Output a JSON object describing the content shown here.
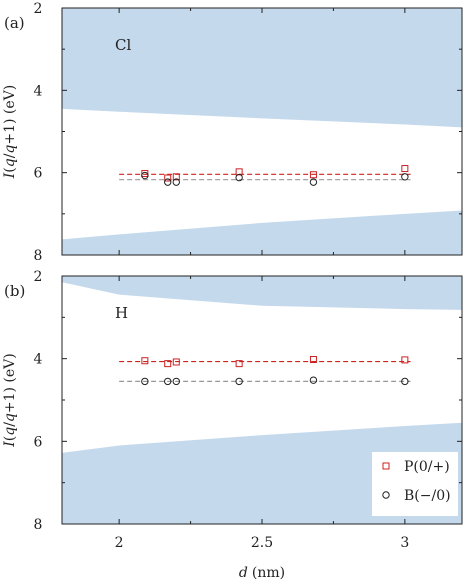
{
  "chart_data": [
    {
      "type": "scatter",
      "panel_label": "(a)",
      "element": "Cl",
      "xlabel": "d (nm)",
      "ylabel": "I(q/q+1) (eV)",
      "xlim": [
        1.8,
        3.2
      ],
      "ylim": [
        2,
        8
      ],
      "y_inverted": true,
      "xticks": [
        "2",
        "2.5",
        "3"
      ],
      "yticks": [
        "2",
        "4",
        "6",
        "8"
      ],
      "band_color": "#c5d9ed",
      "upper_band_edge": {
        "x": [
          1.8,
          2.0,
          2.5,
          3.0,
          3.2
        ],
        "y": [
          4.45,
          4.52,
          4.68,
          4.83,
          4.9
        ]
      },
      "lower_band_edge": {
        "x": [
          1.8,
          2.0,
          2.5,
          3.0,
          3.2
        ],
        "y": [
          7.62,
          7.5,
          7.22,
          7.0,
          6.92
        ]
      },
      "series": [
        {
          "name": "P(0/+)",
          "marker": "square",
          "color": "#cc2222",
          "x": [
            2.09,
            2.17,
            2.2,
            2.42,
            2.68,
            3.0
          ],
          "y": [
            6.02,
            6.13,
            6.1,
            5.98,
            6.05,
            5.9
          ],
          "mean": 6.04
        },
        {
          "name": "B(−/0)",
          "marker": "circle",
          "color": "#222222",
          "x": [
            2.09,
            2.17,
            2.2,
            2.42,
            2.68,
            3.0
          ],
          "y": [
            6.07,
            6.23,
            6.23,
            6.12,
            6.23,
            6.1
          ],
          "mean": 6.17
        }
      ]
    },
    {
      "type": "scatter",
      "panel_label": "(b)",
      "element": "H",
      "xlabel": "d (nm)",
      "ylabel": "I(q/q+1) (eV)",
      "xlim": [
        1.8,
        3.2
      ],
      "ylim": [
        2,
        8
      ],
      "y_inverted": true,
      "xticks": [
        "2",
        "2.5",
        "3"
      ],
      "yticks": [
        "2",
        "4",
        "6",
        "8"
      ],
      "band_color": "#c5d9ed",
      "upper_band_edge": {
        "x": [
          1.8,
          2.0,
          2.5,
          3.0,
          3.2
        ],
        "y": [
          2.15,
          2.45,
          2.72,
          2.8,
          2.82
        ]
      },
      "lower_band_edge": {
        "x": [
          1.8,
          2.0,
          2.5,
          3.0,
          3.2
        ],
        "y": [
          6.28,
          6.1,
          5.85,
          5.63,
          5.55
        ]
      },
      "series": [
        {
          "name": "P(0/+)",
          "marker": "square",
          "color": "#cc2222",
          "x": [
            2.09,
            2.17,
            2.2,
            2.42,
            2.68,
            3.0
          ],
          "y": [
            4.05,
            4.12,
            4.08,
            4.12,
            4.02,
            4.03
          ],
          "mean": 4.07
        },
        {
          "name": "B(−/0)",
          "marker": "circle",
          "color": "#222222",
          "x": [
            2.09,
            2.17,
            2.2,
            2.42,
            2.68,
            3.0
          ],
          "y": [
            4.55,
            4.55,
            4.55,
            4.55,
            4.52,
            4.55
          ],
          "mean": 4.55
        }
      ],
      "legend": {
        "placement": "bottom-right",
        "entries": [
          {
            "label": "P(0/+)",
            "marker": "square",
            "color": "#cc2222"
          },
          {
            "label": "B(−/0)",
            "marker": "circle",
            "color": "#222222"
          }
        ]
      }
    }
  ],
  "shared_xlabel_prefix": "d",
  "shared_xlabel_unit": "(nm)"
}
